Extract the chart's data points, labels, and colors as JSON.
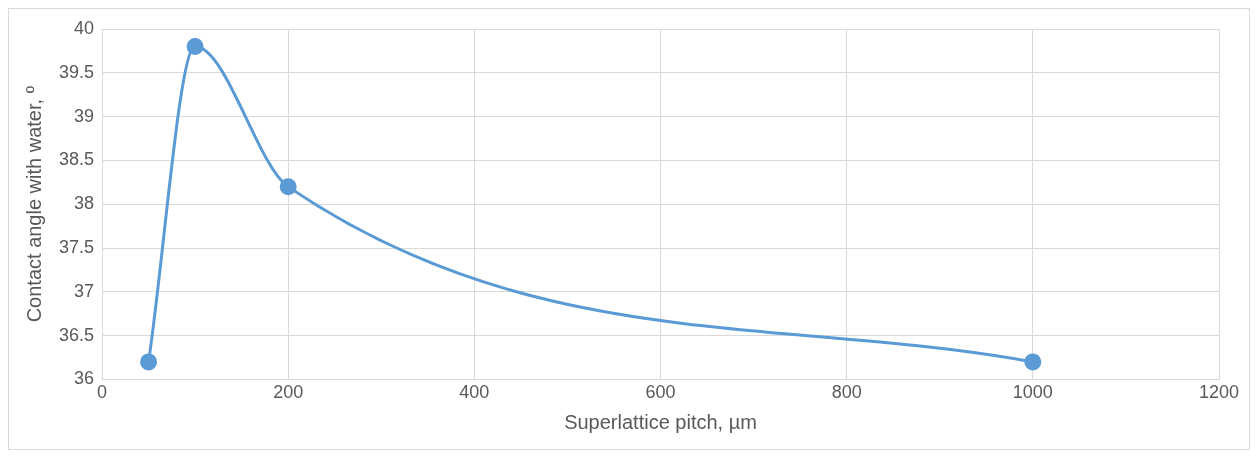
{
  "chart_data": {
    "type": "line",
    "xlabel": "Superlattice pitch, µm",
    "ylabel": "Contact angle with water, º",
    "x": [
      50,
      100,
      200,
      1000
    ],
    "series": [
      {
        "color": "#5b9bd5",
        "values": [
          36.2,
          39.8,
          38.2,
          36.2
        ]
      }
    ],
    "xlim": [
      0,
      1200
    ],
    "xticks": [
      0,
      200,
      400,
      600,
      800,
      1000,
      1200
    ],
    "ylim": [
      36,
      40
    ],
    "yticks": [
      36,
      36.5,
      37,
      37.5,
      38,
      38.5,
      39,
      39.5,
      40
    ],
    "grid": true,
    "marker": "circle",
    "line_style": "solid",
    "legend": false
  }
}
